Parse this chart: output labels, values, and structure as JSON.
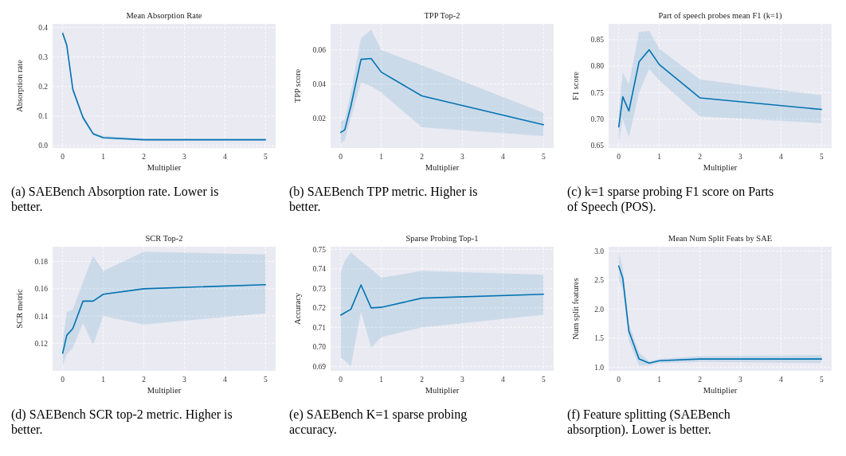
{
  "chart_data": [
    {
      "type": "line",
      "title": "Mean Absorption Rate",
      "xlabel": "Multiplier",
      "ylabel": "Absorption rate",
      "x": [
        0,
        0.1,
        0.25,
        0.5,
        0.75,
        1,
        2,
        5
      ],
      "xlim": [
        -0.25,
        5.25
      ],
      "xticks": [
        0,
        1,
        2,
        3,
        4,
        5
      ],
      "ylim": [
        -0.008,
        0.412
      ],
      "yticks": [
        {
          "value": 0,
          "label": "0.0"
        },
        {
          "value": 0.1,
          "label": "0.1"
        },
        {
          "value": 0.2,
          "label": "0.2"
        },
        {
          "value": 0.3,
          "label": "0.3"
        },
        {
          "value": 0.4,
          "label": "0.4"
        }
      ],
      "grid": true,
      "annotations": [
        "(a) SAEBench Absorption rate. Lower is better."
      ],
      "series": [
        {
          "color": "#0173b2",
          "values": [
            0.38,
            0.34,
            0.19,
            0.095,
            0.04,
            0.027,
            0.02,
            0.02
          ],
          "lower": [
            0.37,
            0.33,
            0.18,
            0.087,
            0.036,
            0.022,
            0.017,
            0.016
          ],
          "upper": [
            0.39,
            0.35,
            0.2,
            0.105,
            0.046,
            0.033,
            0.024,
            0.024
          ]
        }
      ]
    },
    {
      "type": "line",
      "title": "TPP Top-2",
      "xlabel": "Multiplier",
      "ylabel": "TPP score",
      "x": [
        0,
        0.1,
        0.25,
        0.5,
        0.75,
        1,
        2,
        5
      ],
      "xlim": [
        -0.25,
        5.25
      ],
      "xticks": [
        0,
        1,
        2,
        3,
        4,
        5
      ],
      "ylim": [
        0.0023,
        0.0754
      ],
      "yticks": [
        0.02,
        0.04,
        0.06
      ],
      "grid": true,
      "annotations": [
        "(b) SAEBench TPP metric. Higher is better."
      ],
      "series": [
        {
          "color": "#0173b2",
          "values": [
            0.0115,
            0.013,
            0.027,
            0.0545,
            0.055,
            0.047,
            0.033,
            0.016
          ],
          "lower": [
            0.005,
            0.007,
            0.02,
            0.041,
            0.0386,
            0.035,
            0.0145,
            0.0093
          ],
          "upper": [
            0.018,
            0.019,
            0.035,
            0.067,
            0.072,
            0.06,
            0.051,
            0.023
          ]
        }
      ]
    },
    {
      "type": "line",
      "title": "Part of speech probes mean F1 (k=1)",
      "xlabel": "Multiplier",
      "ylabel": "F1 score",
      "x": [
        0,
        0.1,
        0.25,
        0.5,
        0.75,
        1,
        2,
        5
      ],
      "xlim": [
        -0.25,
        5.25
      ],
      "xticks": [
        0,
        1,
        2,
        3,
        4,
        5
      ],
      "ylim": [
        0.645,
        0.88
      ],
      "yticks": [
        {
          "value": 0.65,
          "label": "0.65"
        },
        {
          "value": 0.7,
          "label": "0.70"
        },
        {
          "value": 0.75,
          "label": "0.75"
        },
        {
          "value": 0.8,
          "label": "0.80"
        },
        {
          "value": 0.85,
          "label": "0.85"
        }
      ],
      "grid": true,
      "annotations": [
        "(c) k=1 sparse probing F1 score on Parts of Speech (POS)."
      ],
      "series": [
        {
          "color": "#0173b2",
          "values": [
            0.685,
            0.742,
            0.715,
            0.808,
            0.831,
            0.803,
            0.74,
            0.718
          ],
          "lower": [
            0.655,
            0.7,
            0.665,
            0.75,
            0.795,
            0.773,
            0.705,
            0.692
          ],
          "upper": [
            0.715,
            0.788,
            0.765,
            0.865,
            0.867,
            0.833,
            0.775,
            0.745
          ]
        }
      ]
    },
    {
      "type": "line",
      "title": "SCR Top-2",
      "xlabel": "Multiplier",
      "ylabel": "SCR metric",
      "x": [
        0,
        0.1,
        0.25,
        0.5,
        0.75,
        1,
        2,
        5
      ],
      "xlim": [
        -0.25,
        5.25
      ],
      "xticks": [
        0,
        1,
        2,
        3,
        4,
        5
      ],
      "ylim": [
        0.1001,
        0.1907
      ],
      "yticks": [
        {
          "value": 0.12,
          "label": "0.12"
        },
        {
          "value": 0.14,
          "label": "0.14"
        },
        {
          "value": 0.16,
          "label": "0.16"
        },
        {
          "value": 0.18,
          "label": "0.18"
        }
      ],
      "grid": true,
      "annotations": [
        "(d) SAEBench SCR top-2 metric. Higher is better."
      ],
      "series": [
        {
          "color": "#0173b2",
          "values": [
            0.113,
            0.126,
            0.131,
            0.151,
            0.151,
            0.156,
            0.16,
            0.163
          ],
          "lower": [
            0.104,
            0.112,
            0.117,
            0.135,
            0.119,
            0.14,
            0.134,
            0.142
          ],
          "upper": [
            0.122,
            0.143,
            0.145,
            0.165,
            0.184,
            0.173,
            0.187,
            0.185
          ]
        }
      ]
    },
    {
      "type": "line",
      "title": "Sparse Probing Top-1",
      "xlabel": "Multiplier",
      "ylabel": "Accuracy",
      "x": [
        0,
        0.1,
        0.25,
        0.5,
        0.75,
        1,
        2,
        5
      ],
      "xlim": [
        -0.25,
        5.25
      ],
      "xticks": [
        0,
        1,
        2,
        3,
        4,
        5
      ],
      "ylim": [
        0.6877,
        0.7514
      ],
      "yticks": [
        {
          "value": 0.69,
          "label": "0.69"
        },
        {
          "value": 0.7,
          "label": "0.70"
        },
        {
          "value": 0.71,
          "label": "0.71"
        },
        {
          "value": 0.72,
          "label": "0.72"
        },
        {
          "value": 0.73,
          "label": "0.73"
        },
        {
          "value": 0.74,
          "label": "0.74"
        },
        {
          "value": 0.75,
          "label": "0.75"
        }
      ],
      "grid": true,
      "annotations": [
        "(e) SAEBench K=1 sparse probing accuracy."
      ],
      "series": [
        {
          "color": "#0173b2",
          "values": [
            0.7163,
            0.7175,
            0.7193,
            0.7318,
            0.72,
            0.7203,
            0.725,
            0.727
          ],
          "lower": [
            0.6945,
            0.693,
            0.69,
            0.718,
            0.6995,
            0.705,
            0.71,
            0.7165
          ],
          "upper": [
            0.7385,
            0.744,
            0.7485,
            0.744,
            0.74,
            0.7355,
            0.739,
            0.737
          ]
        }
      ]
    },
    {
      "type": "line",
      "title": "Mean Num Split Feats by SAE",
      "xlabel": "Multiplier",
      "ylabel": "Num split features",
      "x": [
        0,
        0.1,
        0.25,
        0.5,
        0.75,
        1,
        2,
        5
      ],
      "xlim": [
        -0.25,
        5.25
      ],
      "xticks": [
        0,
        1,
        2,
        3,
        4,
        5
      ],
      "ylim": [
        0.936,
        3.074
      ],
      "yticks": [
        {
          "value": 1,
          "label": "1.0"
        },
        {
          "value": 1.5,
          "label": "1.5"
        },
        {
          "value": 2,
          "label": "2.0"
        },
        {
          "value": 2.5,
          "label": "2.5"
        },
        {
          "value": 3,
          "label": "3.0"
        }
      ],
      "grid": true,
      "annotations": [
        "(f) Feature splitting (SAEBench absorption). Lower is better."
      ],
      "series": [
        {
          "color": "#0173b2",
          "values": [
            2.74,
            2.53,
            1.62,
            1.14,
            1.07,
            1.11,
            1.14,
            1.14
          ],
          "lower": [
            2.5,
            2.35,
            1.45,
            1.03,
            1.03,
            1.07,
            1.09,
            1.07
          ],
          "upper": [
            2.98,
            2.7,
            1.75,
            1.25,
            1.1,
            1.14,
            1.19,
            1.21
          ]
        }
      ]
    }
  ]
}
